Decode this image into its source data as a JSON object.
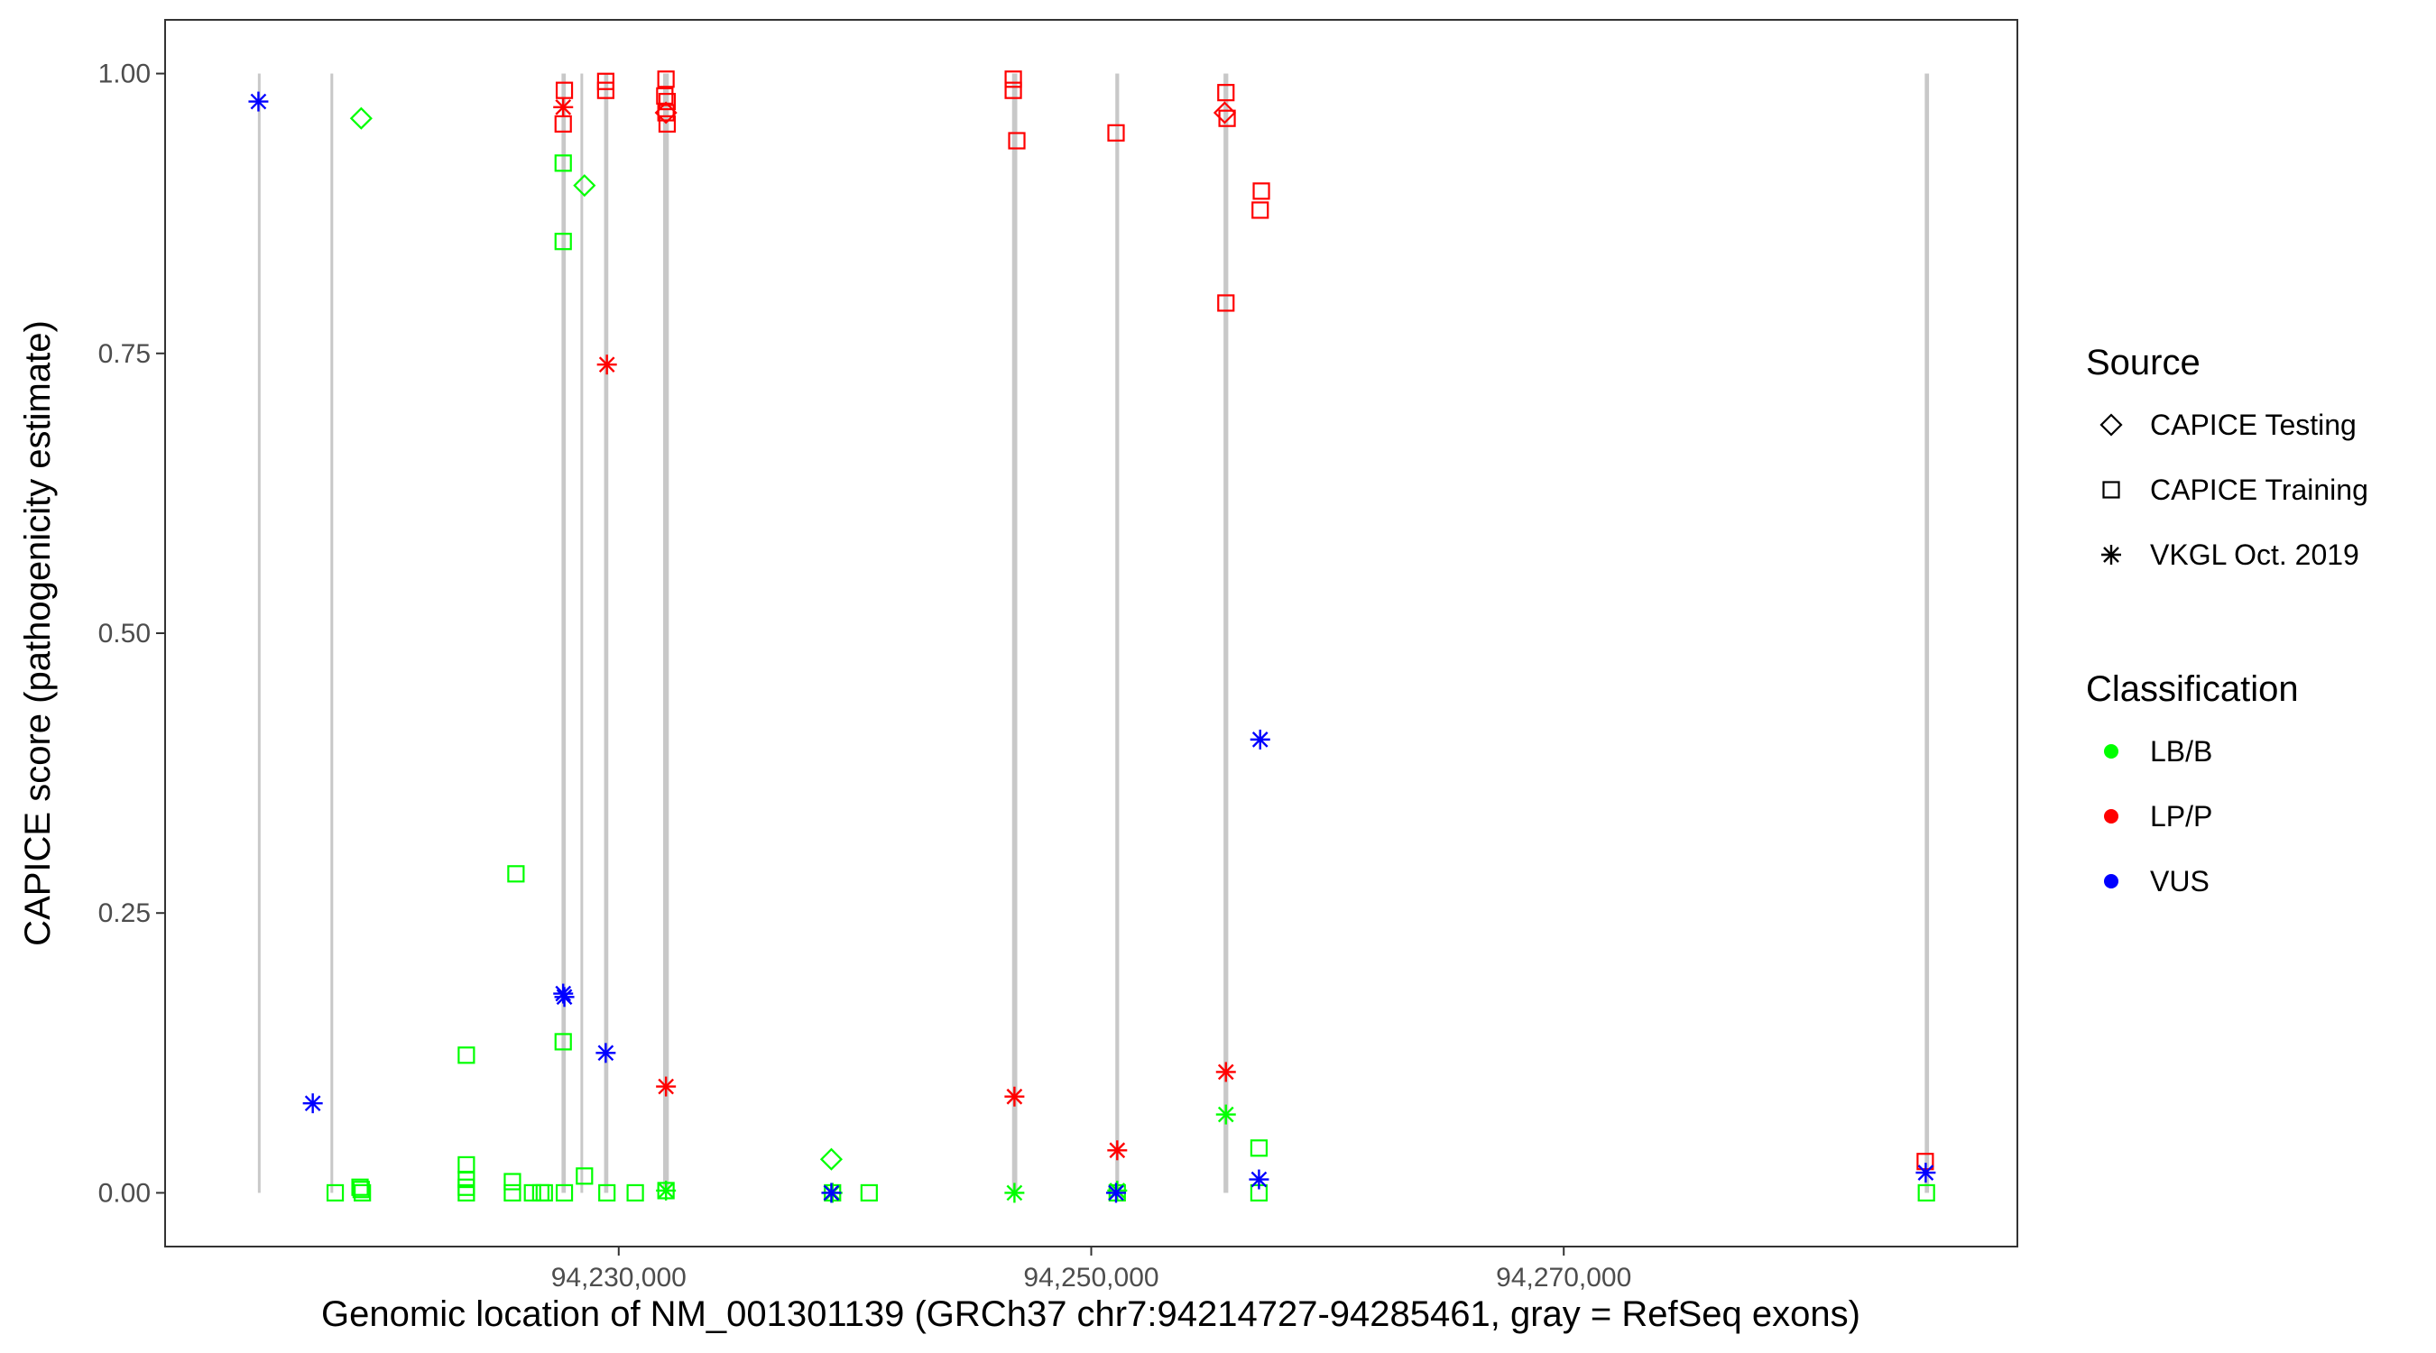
{
  "chart_data": {
    "type": "scatter",
    "title": "",
    "xlabel": "Genomic location of NM_001301139 (GRCh37 chr7:94214727-94285461, gray = RefSeq exons)",
    "ylabel": "CAPICE score (pathogenicity estimate)",
    "xlim": [
      94210800,
      94289200
    ],
    "ylim": [
      -0.048,
      1.048
    ],
    "x_ticks": [
      94230000,
      94250000,
      94270000
    ],
    "x_tick_labels": [
      "94,230,000",
      "94,250,000",
      "94,270,000"
    ],
    "y_ticks": [
      0,
      0.25,
      0.5,
      0.75,
      1
    ],
    "y_tick_labels": [
      "0.00",
      "0.25",
      "0.50",
      "0.75",
      "1.00"
    ],
    "grid": false,
    "legend_position": "right",
    "exons": [
      {
        "start": 94214727,
        "end": 94214800
      },
      {
        "start": 94217800,
        "end": 94217870
      },
      {
        "start": 94227580,
        "end": 94227760
      },
      {
        "start": 94228380,
        "end": 94228440
      },
      {
        "start": 94229380,
        "end": 94229560
      },
      {
        "start": 94231880,
        "end": 94232120
      },
      {
        "start": 94246650,
        "end": 94246870
      },
      {
        "start": 94251020,
        "end": 94251180
      },
      {
        "start": 94255600,
        "end": 94255800
      },
      {
        "start": 94285280,
        "end": 94285461
      }
    ],
    "legends": {
      "source": {
        "title": "Source",
        "entries": [
          {
            "label": "CAPICE Testing",
            "shape": "diamond"
          },
          {
            "label": "CAPICE Training",
            "shape": "square"
          },
          {
            "label": "VKGL Oct. 2019",
            "shape": "asterisk"
          }
        ]
      },
      "classification": {
        "title": "Classification",
        "entries": [
          {
            "label": "LB/B",
            "color": "#00ff00"
          },
          {
            "label": "LP/P",
            "color": "#ff0000"
          },
          {
            "label": "VUS",
            "color": "#0000ff"
          }
        ]
      }
    },
    "series": [
      {
        "source": "CAPICE Testing",
        "classification": "LB/B",
        "shape": "diamond",
        "color": "#00ff00",
        "points": [
          [
            94219100,
            0.96
          ],
          [
            94228550,
            0.9
          ],
          [
            94239000,
            0.03
          ]
        ]
      },
      {
        "source": "CAPICE Testing",
        "classification": "LP/P",
        "shape": "diamond",
        "color": "#ff0000",
        "points": [
          [
            94232000,
            0.965
          ],
          [
            94255650,
            0.965
          ]
        ]
      },
      {
        "source": "CAPICE Training",
        "classification": "LB/B",
        "shape": "square",
        "color": "#00ff00",
        "points": [
          [
            94227650,
            0.92
          ],
          [
            94227650,
            0.85
          ],
          [
            94227650,
            0.135
          ],
          [
            94225650,
            0.285
          ],
          [
            94223550,
            0.123
          ],
          [
            94223550,
            0.025
          ],
          [
            94223550,
            0.012
          ],
          [
            94223550,
            0.005
          ],
          [
            94223550,
            0.0
          ],
          [
            94218000,
            0.0
          ],
          [
            94219050,
            0.005
          ],
          [
            94219100,
            0.003
          ],
          [
            94219150,
            0.0
          ],
          [
            94225500,
            0.01
          ],
          [
            94225500,
            0.0
          ],
          [
            94226350,
            0.0
          ],
          [
            94226700,
            0.0
          ],
          [
            94226850,
            0.0
          ],
          [
            94227700,
            0.0
          ],
          [
            94228550,
            0.015
          ],
          [
            94229500,
            0.0
          ],
          [
            94230700,
            0.0
          ],
          [
            94232000,
            0.002
          ],
          [
            94239050,
            0.0
          ],
          [
            94240600,
            0.0
          ],
          [
            94251100,
            0.0
          ],
          [
            94257100,
            0.04
          ],
          [
            94257100,
            0.0
          ],
          [
            94285350,
            0.0
          ]
        ]
      },
      {
        "source": "CAPICE Training",
        "classification": "LP/P",
        "shape": "square",
        "color": "#ff0000",
        "points": [
          [
            94227700,
            0.985
          ],
          [
            94227650,
            0.955
          ],
          [
            94229450,
            0.993
          ],
          [
            94229450,
            0.985
          ],
          [
            94232000,
            0.995
          ],
          [
            94231950,
            0.98
          ],
          [
            94232050,
            0.975
          ],
          [
            94232000,
            0.965
          ],
          [
            94232050,
            0.955
          ],
          [
            94246700,
            0.995
          ],
          [
            94246700,
            0.985
          ],
          [
            94246850,
            0.94
          ],
          [
            94251050,
            0.947
          ],
          [
            94255700,
            0.983
          ],
          [
            94255750,
            0.96
          ],
          [
            94255700,
            0.795
          ],
          [
            94257200,
            0.895
          ],
          [
            94257150,
            0.878
          ],
          [
            94285300,
            0.028
          ]
        ]
      },
      {
        "source": "VKGL Oct. 2019",
        "classification": "LB/B",
        "shape": "asterisk",
        "color": "#00ff00",
        "points": [
          [
            94232000,
            0.002
          ],
          [
            94246750,
            0.0
          ],
          [
            94255700,
            0.07
          ],
          [
            94239050,
            0.0
          ],
          [
            94251100,
            0.002
          ]
        ]
      },
      {
        "source": "VKGL Oct. 2019",
        "classification": "LP/P",
        "shape": "asterisk",
        "color": "#ff0000",
        "points": [
          [
            94227650,
            0.97
          ],
          [
            94229500,
            0.74
          ],
          [
            94232000,
            0.095
          ],
          [
            94246750,
            0.086
          ],
          [
            94251100,
            0.038
          ],
          [
            94255700,
            0.108
          ]
        ]
      },
      {
        "source": "VKGL Oct. 2019",
        "classification": "VUS",
        "shape": "asterisk",
        "color": "#0000ff",
        "points": [
          [
            94214750,
            0.975
          ],
          [
            94217050,
            0.08
          ],
          [
            94227650,
            0.178
          ],
          [
            94227700,
            0.175
          ],
          [
            94229450,
            0.125
          ],
          [
            94239000,
            0.0
          ],
          [
            94251050,
            0.0
          ],
          [
            94257150,
            0.405
          ],
          [
            94257100,
            0.012
          ],
          [
            94285320,
            0.018
          ]
        ]
      }
    ]
  }
}
